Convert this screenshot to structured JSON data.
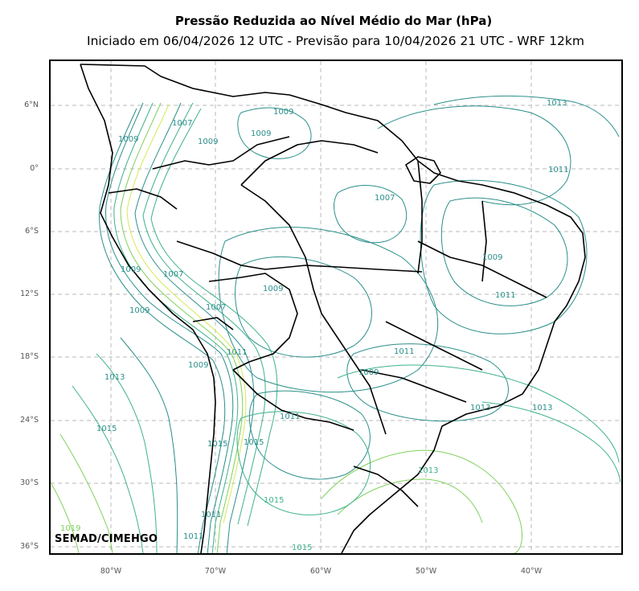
{
  "title": "Pressão Reduzida ao Nível Médio do Mar (hPa)",
  "subtitle": "Iniciado em 06/04/2026 12 UTC - Previsão para 10/04/2026 21 UTC - WRF 12km",
  "credit": "SEMAD/CIMEHGO",
  "lat_labels": [
    "6°N",
    "0°",
    "6°S",
    "12°S",
    "18°S",
    "24°S",
    "30°S",
    "36°S"
  ],
  "lon_labels": [
    "80°W",
    "70°W",
    "60°W",
    "50°W",
    "40°W"
  ],
  "contour_labels": [
    "1013",
    "1009",
    "1009",
    "1007",
    "1009",
    "1009",
    "1011",
    "1007",
    "1009",
    "1007",
    "1009",
    "1011",
    "1009",
    "1007",
    "1009",
    "1011",
    "1009",
    "1013",
    "1011",
    "1015",
    "1013",
    "1015",
    "1015",
    "1011",
    "1013",
    "1019",
    "1015",
    "1011",
    "1015",
    "1013",
    "1011",
    "1009"
  ],
  "colors": {
    "contour_low": "#2a8f8a",
    "contour_mid": "#3fb28a",
    "contour_high": "#7fd05a",
    "contour_max": "#d6e85a",
    "coast": "#000000",
    "grid": "#b8b8b8"
  }
}
